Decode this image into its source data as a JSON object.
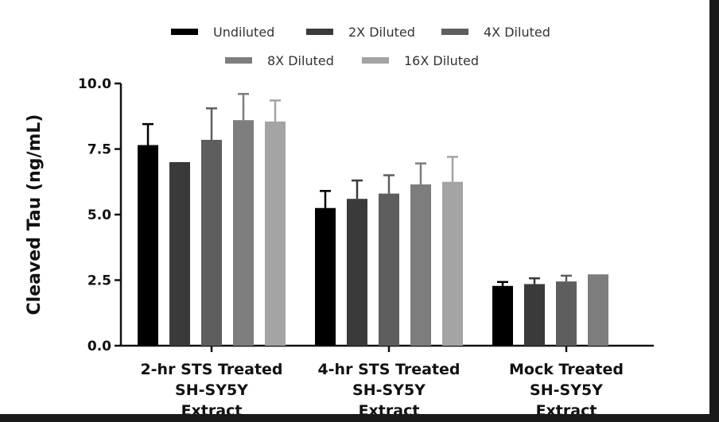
{
  "chart_data": {
    "type": "bar",
    "ylabel": "Cleaved Tau (ng/mL)",
    "ylim": [
      0,
      10
    ],
    "yticks": [
      "0.0",
      "2.5",
      "5.0",
      "7.5",
      "10.0"
    ],
    "legend_position": "top",
    "categories": [
      [
        "2-hr STS Treated",
        "SH-SY5Y",
        "Extract"
      ],
      [
        "4-hr STS Treated",
        "SH-SY5Y",
        "Extract"
      ],
      [
        "Mock Treated",
        "SH-SY5Y",
        "Extract"
      ]
    ],
    "series": [
      {
        "name": "Undiluted",
        "color": "#000000",
        "values": [
          7.65,
          5.25,
          2.28
        ],
        "errors": [
          0.8,
          0.65,
          0.15
        ]
      },
      {
        "name": "2X Diluted",
        "color": "#3a3a3a",
        "values": [
          7.0,
          5.6,
          2.35
        ],
        "errors": [
          null,
          0.7,
          0.22
        ]
      },
      {
        "name": "4X Diluted",
        "color": "#5e5e5e",
        "values": [
          7.85,
          5.8,
          2.45
        ],
        "errors": [
          1.2,
          0.7,
          0.22
        ]
      },
      {
        "name": "8X Diluted",
        "color": "#7d7d7d",
        "values": [
          8.6,
          6.15,
          2.72
        ],
        "errors": [
          1.0,
          0.8,
          null
        ]
      },
      {
        "name": "16X Diluted",
        "color": "#a4a4a4",
        "values": [
          8.55,
          6.25,
          null
        ],
        "errors": [
          0.8,
          0.95,
          null
        ]
      }
    ]
  }
}
